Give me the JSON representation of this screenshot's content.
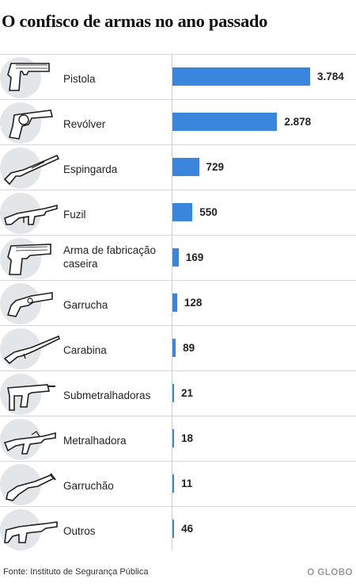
{
  "header": {
    "title": "O confisco de armas no ano passado"
  },
  "chart_data": {
    "type": "bar",
    "orientation": "horizontal",
    "categories": [
      "Pistola",
      "Revólver",
      "Espingarda",
      "Fuzil",
      "Arma de fabricação caseira",
      "Garrucha",
      "Carabina",
      "Submetralhadoras",
      "Metralhadora",
      "Garruchão",
      "Outros"
    ],
    "value_labels": [
      "3.784",
      "2.878",
      "729",
      "550",
      "169",
      "128",
      "89",
      "21",
      "18",
      "11",
      "46"
    ],
    "values": [
      3784,
      2878,
      729,
      550,
      169,
      128,
      89,
      21,
      18,
      11,
      46
    ],
    "icons": [
      "pistol-icon",
      "revolver-icon",
      "shotgun-icon",
      "rifle-icon",
      "homemade-gun-icon",
      "derringer-icon",
      "carbine-icon",
      "submachine-gun-icon",
      "machine-gun-icon",
      "blunderbuss-icon",
      "other-weapons-icon"
    ],
    "bar_color": "#3a86dc",
    "xlim": [
      0,
      3784
    ]
  },
  "footer": {
    "source": "Fonte: Instituto de Segurança Pública",
    "brand": "O GLOBO"
  }
}
